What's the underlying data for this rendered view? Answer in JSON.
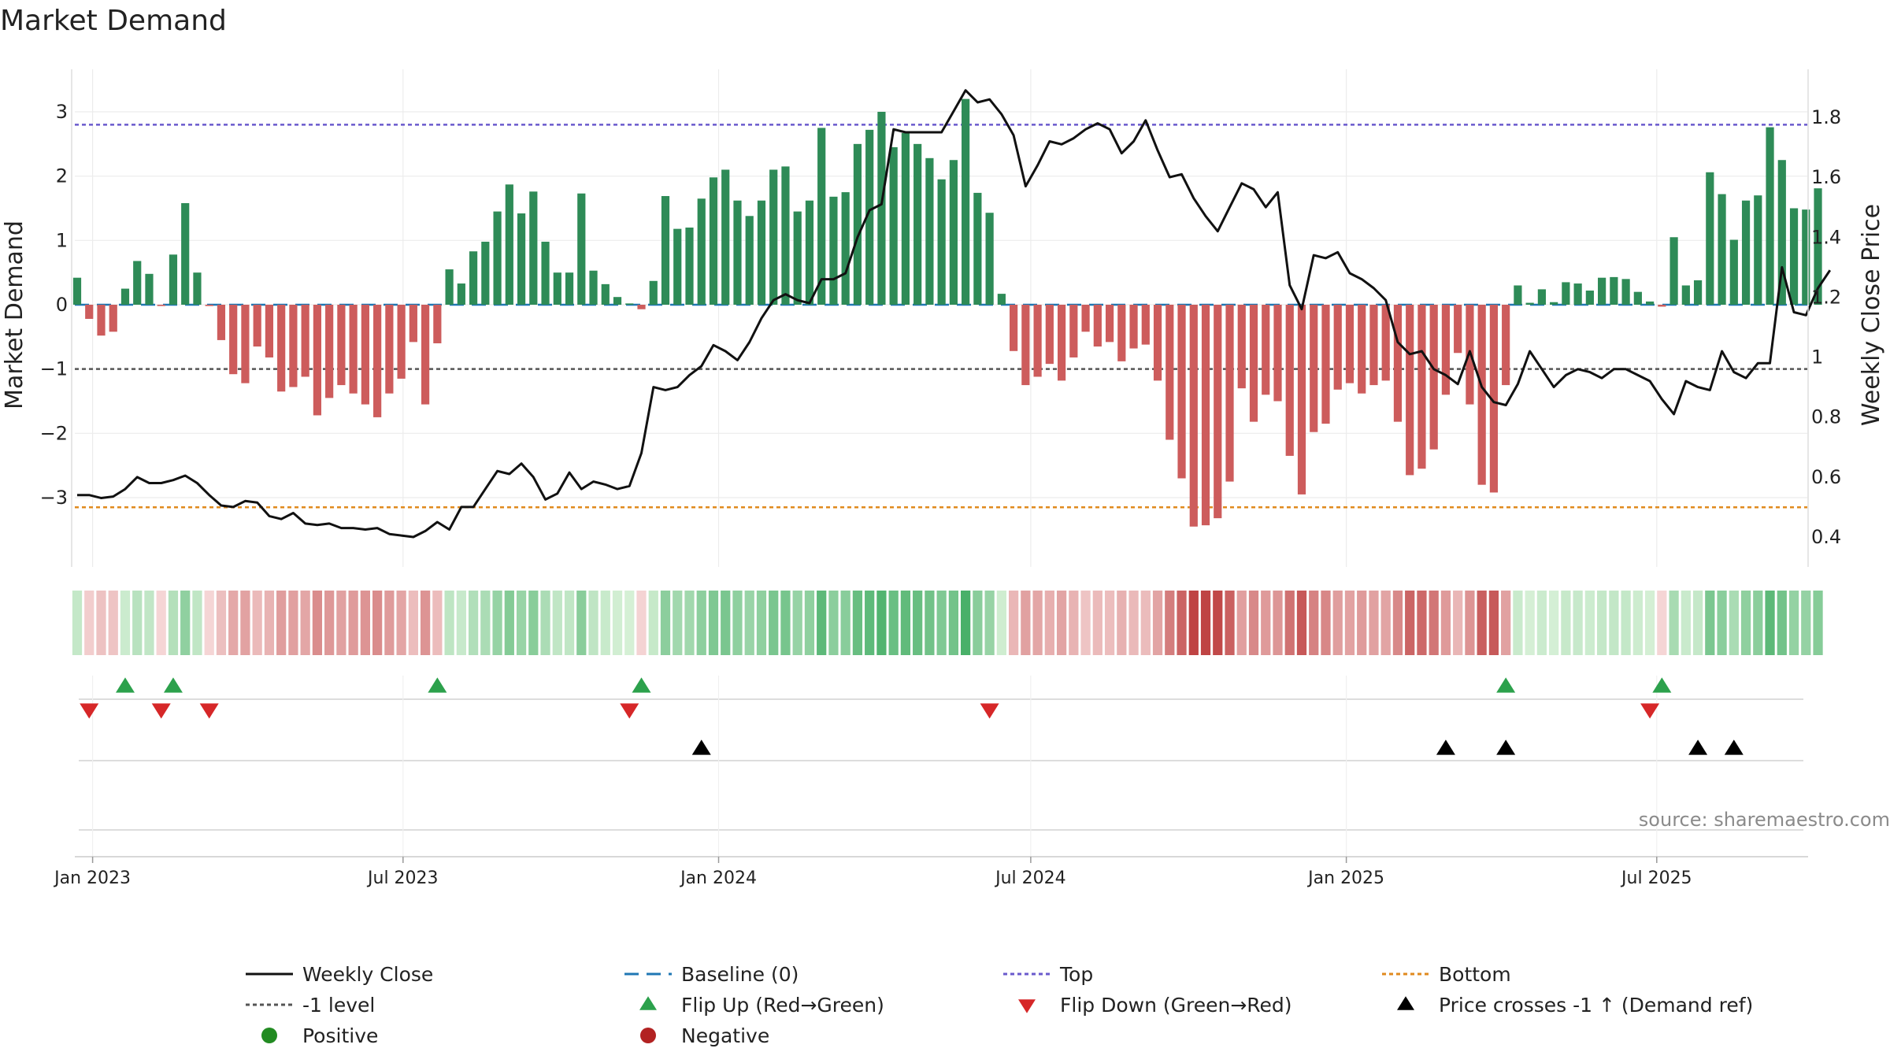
{
  "chart_data": {
    "type": "bar+line",
    "title": "Market Demand",
    "ylabel_left": "Market Demand",
    "ylabel_right": "Weekly Close Price",
    "ylim_left": [
      -3.8,
      3.5
    ],
    "ylim_right": [
      0.3,
      1.95
    ],
    "yticks_left": [
      3,
      2,
      1,
      0,
      -1,
      -2,
      -3
    ],
    "yticks_left_labels": [
      "3",
      "2",
      "1",
      "0",
      "−1",
      "−2",
      "−3"
    ],
    "yticks_right": [
      1.8,
      1.6,
      1.4,
      1.2,
      1.0,
      0.8,
      0.6,
      0.4
    ],
    "yticks_right_labels": [
      "1.8",
      "1.6",
      "1.4",
      "1.2",
      "1",
      "0.8",
      "0.6",
      "0.4"
    ],
    "x_start": "2022-12-23",
    "week_count": 145,
    "date_ticks": [
      {
        "label": "Jan 2023",
        "date": "2023-01-01"
      },
      {
        "label": "Jul 2023",
        "date": "2023-07-01"
      },
      {
        "label": "Jan 2024",
        "date": "2024-01-01"
      },
      {
        "label": "Jul 2024",
        "date": "2024-07-01"
      },
      {
        "label": "Jan 2025",
        "date": "2025-01-01"
      },
      {
        "label": "Jul 2025",
        "date": "2025-07-01"
      }
    ],
    "reference_levels": {
      "top": 2.8,
      "bottom": -3.15,
      "minus_one": -1,
      "baseline": 0
    },
    "demand": [
      0.42,
      -0.22,
      -0.48,
      -0.42,
      0.25,
      0.68,
      0.48,
      -0.02,
      0.78,
      1.58,
      0.5,
      -0.02,
      -0.55,
      -1.08,
      -1.22,
      -0.65,
      -0.82,
      -1.35,
      -1.28,
      -1.12,
      -1.72,
      -1.45,
      -1.25,
      -1.38,
      -1.55,
      -1.75,
      -1.38,
      -1.15,
      -0.58,
      -1.55,
      -0.6,
      0.55,
      0.33,
      0.83,
      0.98,
      1.45,
      1.87,
      1.42,
      1.76,
      0.98,
      0.5,
      0.5,
      1.73,
      0.53,
      0.32,
      0.12,
      0.02,
      -0.07,
      0.37,
      1.69,
      1.18,
      1.2,
      1.65,
      1.98,
      2.1,
      1.62,
      1.38,
      1.62,
      2.1,
      2.15,
      1.45,
      1.62,
      2.75,
      1.68,
      1.75,
      2.5,
      2.72,
      3.0,
      2.45,
      2.67,
      2.5,
      2.28,
      1.95,
      2.25,
      3.2,
      1.74,
      1.43,
      0.17,
      -0.72,
      -1.25,
      -1.12,
      -0.92,
      -1.18,
      -0.82,
      -0.42,
      -0.65,
      -0.58,
      -0.88,
      -0.68,
      -0.62,
      -1.18,
      -2.1,
      -2.7,
      -3.45,
      -3.43,
      -3.32,
      -2.75,
      -1.3,
      -1.82,
      -1.4,
      -1.5,
      -2.35,
      -2.95,
      -1.98,
      -1.85,
      -1.32,
      -1.22,
      -1.38,
      -1.25,
      -1.18,
      -1.82,
      -2.65,
      -2.55,
      -2.25,
      -1.4,
      -0.75,
      -1.55,
      -2.8,
      -2.92,
      -1.25,
      0.3,
      0.03,
      0.24,
      0.04,
      0.35,
      0.33,
      0.22,
      0.42,
      0.43,
      0.4,
      0.2,
      0.05,
      -0.03,
      1.05,
      0.3,
      0.38,
      2.06,
      1.72,
      1.01,
      1.62,
      1.7,
      2.76,
      2.25,
      1.5,
      1.48,
      1.81
    ],
    "weekly_close": [
      0.54,
      0.54,
      0.53,
      0.535,
      0.56,
      0.6,
      0.58,
      0.58,
      0.59,
      0.605,
      0.58,
      0.54,
      0.505,
      0.5,
      0.52,
      0.515,
      0.47,
      0.46,
      0.48,
      0.445,
      0.44,
      0.445,
      0.43,
      0.43,
      0.425,
      0.43,
      0.41,
      0.405,
      0.4,
      0.42,
      0.45,
      0.425,
      0.5,
      0.5,
      0.56,
      0.62,
      0.61,
      0.645,
      0.6,
      0.525,
      0.545,
      0.615,
      0.56,
      0.585,
      0.575,
      0.56,
      0.57,
      0.68,
      0.9,
      0.89,
      0.9,
      0.94,
      0.97,
      1.04,
      1.02,
      0.99,
      1.05,
      1.13,
      1.19,
      1.21,
      1.19,
      1.18,
      1.26,
      1.26,
      1.28,
      1.4,
      1.49,
      1.51,
      1.76,
      1.75,
      1.75,
      1.75,
      1.75,
      1.82,
      1.89,
      1.85,
      1.86,
      1.81,
      1.74,
      1.57,
      1.64,
      1.72,
      1.71,
      1.73,
      1.76,
      1.78,
      1.76,
      1.68,
      1.72,
      1.79,
      1.69,
      1.6,
      1.61,
      1.53,
      1.47,
      1.42,
      1.5,
      1.58,
      1.56,
      1.5,
      1.55,
      1.24,
      1.16,
      1.34,
      1.33,
      1.35,
      1.28,
      1.26,
      1.23,
      1.19,
      1.05,
      1.01,
      1.02,
      0.96,
      0.94,
      0.91,
      1.02,
      0.9,
      0.85,
      0.84,
      0.91,
      1.02,
      0.96,
      0.9,
      0.94,
      0.96,
      0.95,
      0.93,
      0.96,
      0.96,
      0.94,
      0.92,
      0.86,
      0.81,
      0.92,
      0.9,
      0.89,
      1.02,
      0.95,
      0.93,
      0.98,
      0.98,
      1.3,
      1.15,
      1.14,
      1.23,
      1.29
    ],
    "flip_up_weeks": [
      4,
      8,
      30,
      47,
      119,
      132
    ],
    "flip_down_weeks": [
      1,
      7,
      11,
      46,
      76,
      131
    ],
    "price_cross_weeks": [
      52,
      114,
      119,
      135,
      138
    ],
    "source_label": "source: sharemaestro.com",
    "legend": [
      {
        "label": "Weekly Close",
        "symbol": "line",
        "color": "#111111"
      },
      {
        "label": "Baseline (0)",
        "symbol": "dash",
        "color": "#1f77b4"
      },
      {
        "label": "Top",
        "symbol": "dot",
        "color": "#6a5acd"
      },
      {
        "label": "Bottom",
        "symbol": "dot",
        "color": "#e08a1e"
      },
      {
        "label": "-1 level",
        "symbol": "dot",
        "color": "#555555"
      },
      {
        "label": "Flip Up (Red→Green)",
        "symbol": "triangle-up",
        "color": "#2ca14c"
      },
      {
        "label": "Flip Down (Green→Red)",
        "symbol": "triangle-down",
        "color": "#d62728"
      },
      {
        "label": "Price crosses -1 ↑ (Demand ref)",
        "symbol": "triangle-up",
        "color": "#000000"
      },
      {
        "label": "Positive",
        "symbol": "circle",
        "color": "#228b22"
      },
      {
        "label": "Negative",
        "symbol": "circle",
        "color": "#b22222"
      }
    ],
    "colors": {
      "positive": "#2e8b57",
      "negative": "#cd5c5c"
    }
  }
}
